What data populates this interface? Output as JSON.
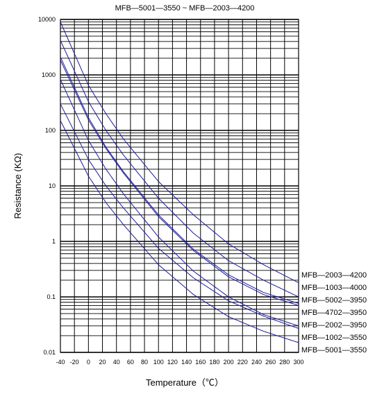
{
  "chart_data": {
    "type": "line",
    "title": "MFB—5001—3550 ~ MFB—2003—4200",
    "xlabel": "Temperature（℃）",
    "ylabel": "Resistance (KΩ)",
    "x_scale": "linear",
    "y_scale": "log",
    "xlim": [
      -40,
      300
    ],
    "ylim": [
      0.01,
      10000
    ],
    "x_ticks": [
      "-40",
      "-20",
      "0",
      "20",
      "40",
      "60",
      "80",
      "100",
      "120",
      "140",
      "160",
      "180",
      "200",
      "220",
      "240",
      "260",
      "280",
      "300"
    ],
    "y_ticks": [
      "10000",
      "1000",
      "100",
      "10",
      "1",
      "0.1",
      "0.01"
    ],
    "grid": true,
    "legend_position": "right",
    "series": [
      {
        "name": "MFB—2003—4200",
        "color": "#1a1a9a",
        "points": [
          [
            -40,
            9000
          ],
          [
            0,
            650
          ],
          [
            25,
            200
          ],
          [
            50,
            70
          ],
          [
            100,
            12
          ],
          [
            150,
            3
          ],
          [
            200,
            0.9
          ],
          [
            250,
            0.38
          ],
          [
            300,
            0.18
          ]
        ]
      },
      {
        "name": "MFB—1003—4000",
        "color": "#1a1a9a",
        "points": [
          [
            -40,
            4200
          ],
          [
            0,
            330
          ],
          [
            25,
            100
          ],
          [
            50,
            36
          ],
          [
            100,
            6
          ],
          [
            150,
            1.4
          ],
          [
            200,
            0.45
          ],
          [
            250,
            0.2
          ],
          [
            300,
            0.1
          ]
        ]
      },
      {
        "name": "MFB—5002—3950",
        "color": "#1a1a9a",
        "points": [
          [
            -40,
            2100
          ],
          [
            0,
            170
          ],
          [
            25,
            50
          ],
          [
            50,
            18
          ],
          [
            100,
            3
          ],
          [
            150,
            0.72
          ],
          [
            200,
            0.25
          ],
          [
            250,
            0.12
          ],
          [
            300,
            0.076
          ]
        ]
      },
      {
        "name": "MFB—4702—3950",
        "color": "#1a1a9a",
        "points": [
          [
            -40,
            1850
          ],
          [
            0,
            155
          ],
          [
            25,
            47
          ],
          [
            50,
            17
          ],
          [
            100,
            2.8
          ],
          [
            150,
            0.68
          ],
          [
            200,
            0.23
          ],
          [
            250,
            0.11
          ],
          [
            300,
            0.07
          ]
        ]
      },
      {
        "name": "MFB—2002—3950",
        "color": "#1a1a9a",
        "points": [
          [
            -40,
            830
          ],
          [
            0,
            66
          ],
          [
            25,
            20
          ],
          [
            50,
            7.2
          ],
          [
            100,
            1.2
          ],
          [
            150,
            0.29
          ],
          [
            200,
            0.1
          ],
          [
            250,
            0.048
          ],
          [
            300,
            0.03
          ]
        ]
      },
      {
        "name": "MFB—1002—3550",
        "color": "#1a1a9a",
        "points": [
          [
            -40,
            300
          ],
          [
            0,
            30
          ],
          [
            25,
            10
          ],
          [
            50,
            4
          ],
          [
            100,
            0.75
          ],
          [
            150,
            0.22
          ],
          [
            200,
            0.085
          ],
          [
            250,
            0.045
          ],
          [
            300,
            0.027
          ]
        ]
      },
      {
        "name": "MFB—5001—3550",
        "color": "#1a1a9a",
        "points": [
          [
            -40,
            150
          ],
          [
            0,
            15
          ],
          [
            25,
            5
          ],
          [
            50,
            2
          ],
          [
            100,
            0.38
          ],
          [
            150,
            0.11
          ],
          [
            200,
            0.044
          ],
          [
            250,
            0.024
          ],
          [
            300,
            0.015
          ]
        ]
      }
    ]
  }
}
